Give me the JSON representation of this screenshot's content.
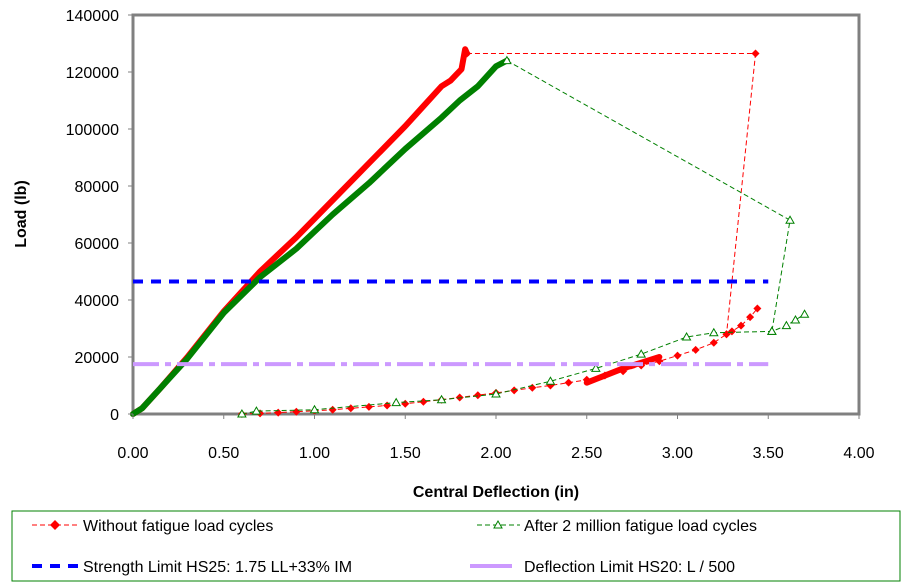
{
  "chart_data": {
    "type": "line",
    "title": "",
    "xlabel": "Central Deflection (in)",
    "ylabel": "Load (lb)",
    "xlim": [
      0,
      4
    ],
    "ylim": [
      0,
      140000
    ],
    "x_ticks": [
      "0.00",
      "0.50",
      "1.00",
      "1.50",
      "2.00",
      "2.50",
      "3.00",
      "3.50",
      "4.00"
    ],
    "y_ticks": [
      "0",
      "20000",
      "40000",
      "60000",
      "80000",
      "100000",
      "120000",
      "140000"
    ],
    "grid": false,
    "legend_position": "bottom",
    "series": [
      {
        "name": "Without fatigue load cycles",
        "color": "#ff0000",
        "marker": "diamond",
        "line_style": "dashed",
        "segments": [
          {
            "style": "dense",
            "points": [
              [
                0.0,
                0
              ],
              [
                0.05,
                2000
              ],
              [
                0.15,
                9000
              ],
              [
                0.3,
                20000
              ],
              [
                0.5,
                36000
              ],
              [
                0.7,
                50000
              ],
              [
                0.9,
                62000
              ],
              [
                1.1,
                75000
              ],
              [
                1.3,
                88000
              ],
              [
                1.5,
                101000
              ],
              [
                1.6,
                108000
              ],
              [
                1.7,
                115000
              ],
              [
                1.75,
                117000
              ],
              [
                1.78,
                119000
              ],
              [
                1.81,
                121000
              ],
              [
                1.83,
                128000
              ],
              [
                1.84,
                126500
              ]
            ]
          },
          {
            "style": "dashed",
            "points": [
              [
                1.84,
                126500
              ],
              [
                3.43,
                126500
              ],
              [
                3.27,
                28000
              ]
            ]
          },
          {
            "style": "dense",
            "points": [
              [
                2.5,
                11000
              ],
              [
                2.6,
                13500
              ],
              [
                2.7,
                16000
              ],
              [
                2.8,
                18000
              ],
              [
                2.9,
                20000
              ]
            ]
          },
          {
            "style": "markers",
            "points": [
              [
                0.6,
                0
              ],
              [
                0.7,
                200
              ],
              [
                0.8,
                500
              ],
              [
                0.9,
                800
              ],
              [
                1.0,
                1100
              ],
              [
                1.1,
                1500
              ],
              [
                1.2,
                2000
              ],
              [
                1.3,
                2500
              ],
              [
                1.4,
                3000
              ],
              [
                1.5,
                3600
              ],
              [
                1.6,
                4300
              ],
              [
                1.7,
                5000
              ],
              [
                1.8,
                5800
              ],
              [
                1.9,
                6600
              ],
              [
                2.0,
                7400
              ],
              [
                2.1,
                8300
              ],
              [
                2.2,
                9200
              ],
              [
                2.3,
                10000
              ],
              [
                2.4,
                11000
              ],
              [
                2.5,
                12000
              ],
              [
                2.6,
                13500
              ],
              [
                2.7,
                15000
              ],
              [
                2.8,
                17000
              ],
              [
                2.9,
                18500
              ],
              [
                3.0,
                20500
              ],
              [
                3.1,
                22500
              ],
              [
                3.2,
                25000
              ],
              [
                3.27,
                28000
              ],
              [
                3.3,
                29000
              ],
              [
                3.35,
                31000
              ],
              [
                3.4,
                34000
              ],
              [
                3.44,
                37000
              ]
            ]
          }
        ]
      },
      {
        "name": "After 2 million fatigue load cycles",
        "color": "#008000",
        "marker": "triangle",
        "line_style": "dashed",
        "segments": [
          {
            "style": "dense",
            "points": [
              [
                0.0,
                0
              ],
              [
                0.05,
                2000
              ],
              [
                0.15,
                9000
              ],
              [
                0.3,
                19500
              ],
              [
                0.5,
                35500
              ],
              [
                0.7,
                48000
              ],
              [
                0.9,
                58000
              ],
              [
                1.1,
                70000
              ],
              [
                1.3,
                81000
              ],
              [
                1.5,
                93000
              ],
              [
                1.7,
                104000
              ],
              [
                1.8,
                110000
              ],
              [
                1.9,
                115000
              ],
              [
                2.0,
                122000
              ],
              [
                2.06,
                124000
              ]
            ]
          },
          {
            "style": "dashed",
            "points": [
              [
                2.06,
                124000
              ],
              [
                3.62,
                68000
              ],
              [
                3.52,
                29000
              ]
            ]
          },
          {
            "style": "markers",
            "points": [
              [
                0.6,
                0
              ],
              [
                0.68,
                1000
              ],
              [
                1.0,
                1500
              ],
              [
                1.45,
                4000
              ],
              [
                1.7,
                5000
              ],
              [
                2.0,
                7000
              ],
              [
                2.3,
                11500
              ],
              [
                2.55,
                16000
              ],
              [
                2.8,
                21000
              ],
              [
                3.05,
                27000
              ],
              [
                3.2,
                28500
              ],
              [
                3.52,
                29000
              ],
              [
                3.6,
                31000
              ],
              [
                3.65,
                33000
              ],
              [
                3.7,
                35000
              ]
            ]
          }
        ]
      },
      {
        "name": "Strength Limit HS25: 1.75 LL+33% IM",
        "color": "#0000ff",
        "line_style": "dashed-thick",
        "points": [
          [
            0,
            46500
          ],
          [
            3.5,
            46500
          ]
        ]
      },
      {
        "name": "Deflection Limit HS20: L / 500",
        "color": "#cc99ff",
        "line_style": "dash-dot-thick",
        "points": [
          [
            0,
            17500
          ],
          [
            3.5,
            17500
          ]
        ]
      }
    ]
  }
}
